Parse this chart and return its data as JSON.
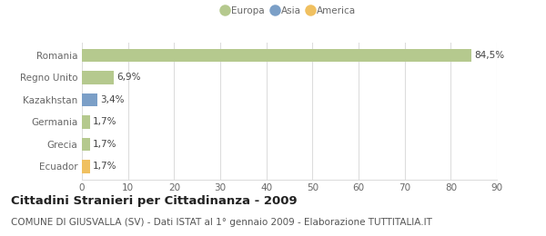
{
  "categories": [
    "Romania",
    "Regno Unito",
    "Kazakhstan",
    "Germania",
    "Grecia",
    "Ecuador"
  ],
  "values": [
    84.5,
    6.9,
    3.4,
    1.7,
    1.7,
    1.7
  ],
  "labels": [
    "84,5%",
    "6,9%",
    "3,4%",
    "1,7%",
    "1,7%",
    "1,7%"
  ],
  "colors": [
    "#b5c98e",
    "#b5c98e",
    "#7b9fc7",
    "#b5c98e",
    "#b5c98e",
    "#f0c060"
  ],
  "legend_items": [
    {
      "label": "Europa",
      "color": "#b5c98e"
    },
    {
      "label": "Asia",
      "color": "#7b9fc7"
    },
    {
      "label": "America",
      "color": "#f0c060"
    }
  ],
  "xlim": [
    0,
    90
  ],
  "xticks": [
    0,
    10,
    20,
    30,
    40,
    50,
    60,
    70,
    80,
    90
  ],
  "title": "Cittadini Stranieri per Cittadinanza - 2009",
  "subtitle": "COMUNE DI GIUSVALLA (SV) - Dati ISTAT al 1° gennaio 2009 - Elaborazione TUTTITALIA.IT",
  "title_fontsize": 9.5,
  "subtitle_fontsize": 7.5,
  "tick_fontsize": 7.5,
  "label_fontsize": 7.5,
  "bar_height": 0.6,
  "grid_color": "#dddddd",
  "background_color": "#ffffff",
  "text_color": "#555555",
  "bar_label_color": "#444444",
  "ytick_color": "#666666"
}
